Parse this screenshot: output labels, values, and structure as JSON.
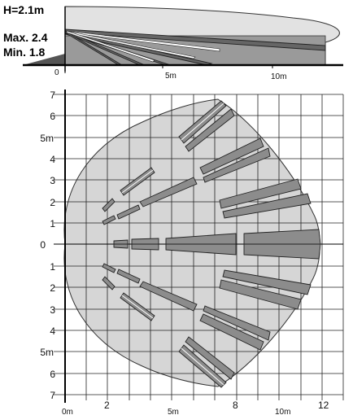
{
  "specs": {
    "height": "H=2.1m",
    "max": "Max. 2.4",
    "min": "Min. 1.8"
  },
  "side_view": {
    "tick_labels": [
      "0",
      "5m",
      "10m"
    ]
  },
  "top_view": {
    "y_labels": [
      "7",
      "6",
      "5m",
      "4",
      "3",
      "2",
      "1",
      "0",
      "1",
      "2",
      "3",
      "4",
      "5m",
      "6",
      "7"
    ],
    "x_labels": [
      "0m",
      "2",
      "5m",
      "8",
      "10m",
      "12"
    ]
  },
  "colors": {
    "coverage_fill": "#d6d6d6",
    "zone_fill": "#8c8c8c",
    "side_fill": "#e2e2e2",
    "grid": "#222222"
  }
}
